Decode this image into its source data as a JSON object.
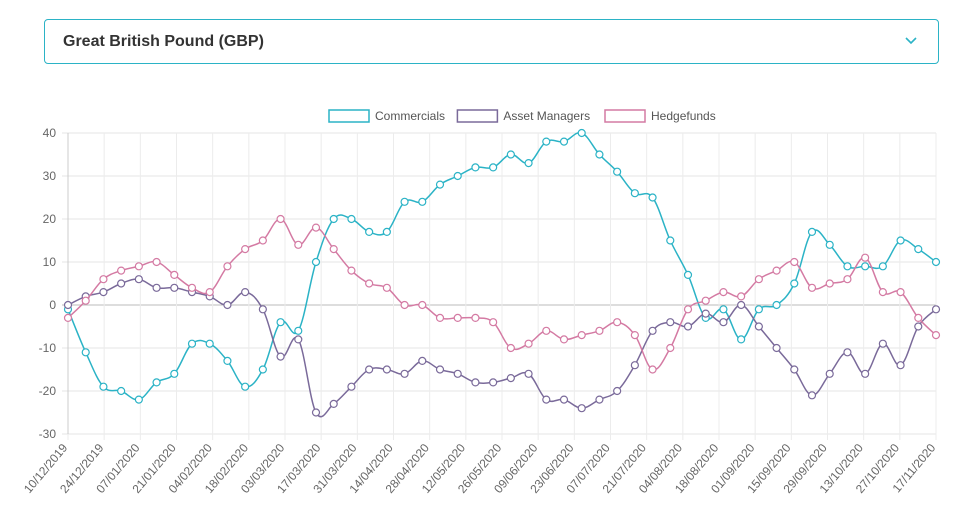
{
  "selector": {
    "value": "Great British Pound (GBP)",
    "icon": "chevron-down-icon"
  },
  "chart_data": {
    "type": "line",
    "ylim": [
      -30,
      40
    ],
    "yticks": [
      -30,
      -20,
      -10,
      0,
      10,
      20,
      30,
      40
    ],
    "x_tick_labels": [
      "10/12/2019",
      "24/12/2019",
      "07/01/2020",
      "21/01/2020",
      "04/02/2020",
      "18/02/2020",
      "03/03/2020",
      "17/03/2020",
      "31/03/2020",
      "14/04/2020",
      "28/04/2020",
      "12/05/2020",
      "26/05/2020",
      "09/06/2020",
      "23/06/2020",
      "07/07/2020",
      "21/07/2020",
      "04/08/2020",
      "18/08/2020",
      "01/09/2020",
      "15/09/2020",
      "29/09/2020",
      "13/10/2020",
      "27/10/2020",
      "17/11/2020"
    ],
    "legend_position": "top",
    "grid": true,
    "series": [
      {
        "name": "Commercials",
        "color": "#2bb3c6",
        "values": [
          -1,
          -11,
          -19,
          -20,
          -22,
          -18,
          -16,
          -9,
          -9,
          -13,
          -19,
          -15,
          -4,
          -6,
          10,
          20,
          20,
          17,
          17,
          24,
          24,
          28,
          30,
          32,
          32,
          35,
          33,
          38,
          38,
          40,
          35,
          31,
          26,
          25,
          15,
          7,
          -3,
          -1,
          -8,
          -1,
          0,
          5,
          17,
          14,
          9,
          9,
          9,
          15,
          13,
          10
        ]
      },
      {
        "name": "Asset Managers",
        "color": "#7a6a9a",
        "values": [
          0,
          2,
          3,
          5,
          6,
          4,
          4,
          3,
          2,
          0,
          3,
          -1,
          -12,
          -8,
          -25,
          -23,
          -19,
          -15,
          -15,
          -16,
          -13,
          -15,
          -16,
          -18,
          -18,
          -17,
          -16,
          -22,
          -22,
          -24,
          -22,
          -20,
          -14,
          -6,
          -4,
          -5,
          -2,
          -4,
          0,
          -5,
          -10,
          -15,
          -21,
          -16,
          -11,
          -16,
          -9,
          -14,
          -5,
          -1
        ]
      },
      {
        "name": "Hedgefunds",
        "color": "#d47aa3",
        "values": [
          -3,
          1,
          6,
          8,
          9,
          10,
          7,
          4,
          3,
          9,
          13,
          15,
          20,
          14,
          18,
          13,
          8,
          5,
          4,
          0,
          0,
          -3,
          -3,
          -3,
          -4,
          -10,
          -9,
          -6,
          -8,
          -7,
          -6,
          -4,
          -7,
          -15,
          -10,
          -1,
          1,
          3,
          2,
          6,
          8,
          10,
          4,
          5,
          6,
          11,
          3,
          3,
          -3,
          -7
        ]
      }
    ]
  }
}
